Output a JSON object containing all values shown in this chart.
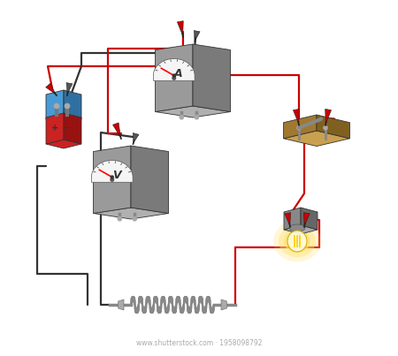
{
  "background_color": "#ffffff",
  "wire_red": "#cc0000",
  "wire_black": "#333333",
  "meter_body": "#7a7a7a",
  "meter_body_light": "#9a9a9a",
  "meter_body_top": "#b0b0b0",
  "meter_face": "#f5f5f5",
  "battery_blue": "#4a9ad4",
  "battery_blue_dark": "#3070a0",
  "battery_red": "#cc2222",
  "battery_red_dark": "#991111",
  "switch_wood": "#c8a050",
  "switch_wood_dark": "#a07830",
  "switch_wood_side": "#806020",
  "lamp_glow": "#ffe066",
  "coil_color": "#aaaaaa",
  "coil_dark": "#888888",
  "watermark_text": "www.shutterstock.com · 1958098792",
  "clip_red": "#cc0000",
  "clip_dark": "#444444"
}
